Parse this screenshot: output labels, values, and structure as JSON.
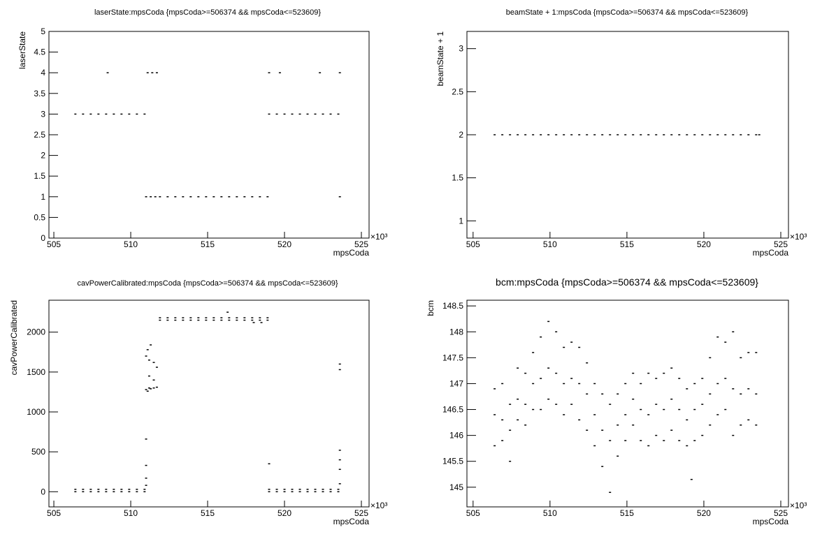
{
  "chart_data": [
    {
      "type": "scatter",
      "title": "laserState:mpsCoda {mpsCoda>=506374 && mpsCoda<=523609}",
      "xlabel": "mpsCoda",
      "ylabel": "laserState",
      "x_multiplier": "×10³",
      "color": "#000000",
      "xlim": [
        504.68,
        525.5
      ],
      "ylim": [
        0,
        5
      ],
      "xticks": [
        505,
        510,
        515,
        520,
        525
      ],
      "yticks": [
        0,
        0.5,
        1,
        1.5,
        2,
        2.5,
        3,
        3.5,
        4,
        4.5,
        5
      ],
      "x": [
        506.4,
        506.9,
        507.4,
        507.9,
        508.4,
        508.9,
        509.4,
        509.9,
        510.4,
        510.9,
        508.5,
        511.1,
        511.4,
        511.7,
        511.0,
        511.3,
        511.6,
        511.9,
        512.4,
        512.9,
        513.4,
        513.9,
        514.4,
        514.9,
        515.4,
        515.9,
        516.4,
        516.9,
        517.4,
        517.9,
        518.4,
        518.9,
        519.0,
        519.5,
        520.0,
        520.5,
        521.0,
        521.5,
        522.0,
        522.5,
        523.0,
        523.5,
        519.0,
        519.7,
        522.3,
        523.6,
        523.6
      ],
      "values": [
        3,
        3,
        3,
        3,
        3,
        3,
        3,
        3,
        3,
        3,
        4,
        4,
        4,
        4,
        1,
        1,
        1,
        1,
        1,
        1,
        1,
        1,
        1,
        1,
        1,
        1,
        1,
        1,
        1,
        1,
        1,
        1,
        3,
        3,
        3,
        3,
        3,
        3,
        3,
        3,
        3,
        3,
        4,
        4,
        4,
        4,
        1
      ]
    },
    {
      "type": "scatter",
      "title": "beamState + 1:mpsCoda {mpsCoda>=506374 && mpsCoda<=523609}",
      "xlabel": "mpsCoda",
      "ylabel": "beamState + 1",
      "x_multiplier": "×10³",
      "color": "#000000",
      "xlim": [
        504.6,
        525.5
      ],
      "ylim": [
        0.8,
        3.2
      ],
      "xticks": [
        505,
        510,
        515,
        520,
        525
      ],
      "yticks": [
        1,
        1.5,
        2,
        2.5,
        3
      ],
      "x": [
        506.4,
        506.9,
        507.4,
        507.9,
        508.4,
        508.9,
        509.4,
        509.9,
        510.4,
        510.9,
        511.4,
        511.9,
        512.4,
        512.9,
        513.4,
        513.9,
        514.4,
        514.9,
        515.4,
        515.9,
        516.4,
        516.9,
        517.4,
        517.9,
        518.4,
        518.9,
        519.4,
        519.9,
        520.4,
        520.9,
        521.4,
        521.9,
        522.4,
        522.9,
        523.4,
        523.6
      ],
      "values": [
        2,
        2,
        2,
        2,
        2,
        2,
        2,
        2,
        2,
        2,
        2,
        2,
        2,
        2,
        2,
        2,
        2,
        2,
        2,
        2,
        2,
        2,
        2,
        2,
        2,
        2,
        2,
        2,
        2,
        2,
        2,
        2,
        2,
        2,
        2,
        2
      ]
    },
    {
      "type": "scatter",
      "title": "cavPowerCalibrated:mpsCoda {mpsCoda>=506374 && mpsCoda<=523609}",
      "xlabel": "mpsCoda",
      "ylabel": "cavPowerCalibrated",
      "x_multiplier": "×10³",
      "color": "#000000",
      "xlim": [
        504.68,
        525.5
      ],
      "ylim": [
        -190,
        2400
      ],
      "xticks": [
        505,
        510,
        515,
        520,
        525
      ],
      "yticks": [
        0,
        500,
        1000,
        1500,
        2000
      ],
      "x": [
        506.4,
        506.9,
        507.4,
        507.9,
        508.4,
        508.9,
        509.4,
        509.9,
        510.4,
        510.9,
        506.4,
        506.9,
        507.4,
        507.9,
        508.4,
        508.9,
        509.4,
        509.9,
        510.4,
        510.9,
        511.0,
        511.0,
        511.1,
        511.1,
        511.2,
        511.2,
        511.3,
        511.3,
        511.5,
        511.5,
        511.7,
        511.7,
        511.2,
        511.5,
        511.0,
        511.0,
        511.0,
        511.0,
        511.9,
        512.4,
        512.9,
        513.4,
        513.9,
        514.4,
        514.9,
        515.4,
        515.9,
        516.4,
        516.9,
        517.4,
        517.9,
        518.4,
        518.9,
        511.9,
        512.4,
        512.9,
        513.4,
        513.9,
        514.4,
        514.9,
        515.4,
        515.9,
        516.4,
        516.9,
        517.4,
        517.9,
        518.4,
        518.9,
        516.3,
        518.0,
        518.5,
        519.0,
        519.5,
        520.0,
        520.5,
        521.0,
        521.5,
        522.0,
        522.5,
        523.0,
        523.5,
        519.0,
        519.5,
        520.0,
        520.5,
        521.0,
        521.5,
        522.0,
        522.5,
        523.0,
        523.5,
        519.0,
        523.6,
        523.6,
        523.6,
        523.6,
        523.6,
        523.6
      ],
      "values": [
        0,
        0,
        0,
        0,
        0,
        0,
        0,
        0,
        0,
        0,
        30,
        30,
        30,
        30,
        30,
        30,
        30,
        30,
        30,
        30,
        1280,
        1700,
        1260,
        1780,
        1300,
        1650,
        1290,
        1840,
        1300,
        1620,
        1310,
        1560,
        1450,
        1400,
        660,
        330,
        170,
        80,
        2150,
        2150,
        2150,
        2150,
        2150,
        2150,
        2150,
        2150,
        2150,
        2150,
        2150,
        2150,
        2150,
        2150,
        2150,
        2180,
        2180,
        2180,
        2180,
        2180,
        2180,
        2180,
        2180,
        2180,
        2180,
        2180,
        2180,
        2180,
        2180,
        2180,
        2250,
        2120,
        2120,
        0,
        0,
        0,
        0,
        0,
        0,
        0,
        0,
        0,
        0,
        30,
        30,
        30,
        30,
        30,
        30,
        30,
        30,
        30,
        30,
        350,
        1600,
        1530,
        520,
        400,
        280,
        100
      ]
    },
    {
      "type": "scatter",
      "title": "bcm:mpsCoda {mpsCoda>=506374 && mpsCoda<=523609}",
      "xlabel": "mpsCoda",
      "ylabel": "bcm",
      "x_multiplier": "×10³",
      "color": "#000000",
      "xlim": [
        504.6,
        525.5
      ],
      "ylim": [
        144.62,
        148.61
      ],
      "xticks": [
        505,
        510,
        515,
        520,
        525
      ],
      "yticks": [
        145,
        145.5,
        146,
        146.5,
        147,
        147.5,
        148,
        148.5
      ],
      "x": [
        506.4,
        506.4,
        506.4,
        506.9,
        506.9,
        506.9,
        507.4,
        507.4,
        507.4,
        507.9,
        507.9,
        507.9,
        508.4,
        508.4,
        508.4,
        508.9,
        508.9,
        508.9,
        509.4,
        509.4,
        509.4,
        509.9,
        509.9,
        509.9,
        510.4,
        510.4,
        510.4,
        510.9,
        510.9,
        510.9,
        511.4,
        511.4,
        511.4,
        511.9,
        511.9,
        511.9,
        512.4,
        512.4,
        512.4,
        512.9,
        512.9,
        512.9,
        513.4,
        513.4,
        513.4,
        513.9,
        513.9,
        513.9,
        514.4,
        514.4,
        514.4,
        514.9,
        514.9,
        514.9,
        515.4,
        515.4,
        515.4,
        515.9,
        515.9,
        515.9,
        516.4,
        516.4,
        516.4,
        516.9,
        516.9,
        516.9,
        517.4,
        517.4,
        517.4,
        517.9,
        517.9,
        517.9,
        518.4,
        518.4,
        518.4,
        518.9,
        518.9,
        518.9,
        519.4,
        519.4,
        519.4,
        519.9,
        519.9,
        519.9,
        520.4,
        520.4,
        520.4,
        520.9,
        520.9,
        520.9,
        521.4,
        521.4,
        521.4,
        521.9,
        521.9,
        521.9,
        522.4,
        522.4,
        522.4,
        522.9,
        522.9,
        522.9,
        523.4,
        523.4,
        523.4,
        519.2
      ],
      "values": [
        146.4,
        145.8,
        146.9,
        146.3,
        145.9,
        147.0,
        146.1,
        145.5,
        146.6,
        146.7,
        146.3,
        147.3,
        146.6,
        146.2,
        147.2,
        147.0,
        146.5,
        147.6,
        147.1,
        146.5,
        147.9,
        147.3,
        146.7,
        148.2,
        147.2,
        146.6,
        148.0,
        147.0,
        146.4,
        147.7,
        147.1,
        146.6,
        147.8,
        147.0,
        146.3,
        147.7,
        146.8,
        146.1,
        147.4,
        146.4,
        145.8,
        147.0,
        146.1,
        145.4,
        146.8,
        145.9,
        144.9,
        146.6,
        146.2,
        145.6,
        146.8,
        146.4,
        145.9,
        147.0,
        146.7,
        146.2,
        147.2,
        146.5,
        145.9,
        147.0,
        146.4,
        145.8,
        147.2,
        146.6,
        146.0,
        147.1,
        146.5,
        145.9,
        147.2,
        146.7,
        146.1,
        147.3,
        146.5,
        145.9,
        147.1,
        146.3,
        145.8,
        146.9,
        146.5,
        145.9,
        147.0,
        146.6,
        146.0,
        147.1,
        146.8,
        146.2,
        147.5,
        147.0,
        146.4,
        147.9,
        147.1,
        146.5,
        147.8,
        146.9,
        146.0,
        148.0,
        146.8,
        146.2,
        147.5,
        146.9,
        146.3,
        147.6,
        146.8,
        146.2,
        147.6,
        145.15
      ]
    }
  ]
}
